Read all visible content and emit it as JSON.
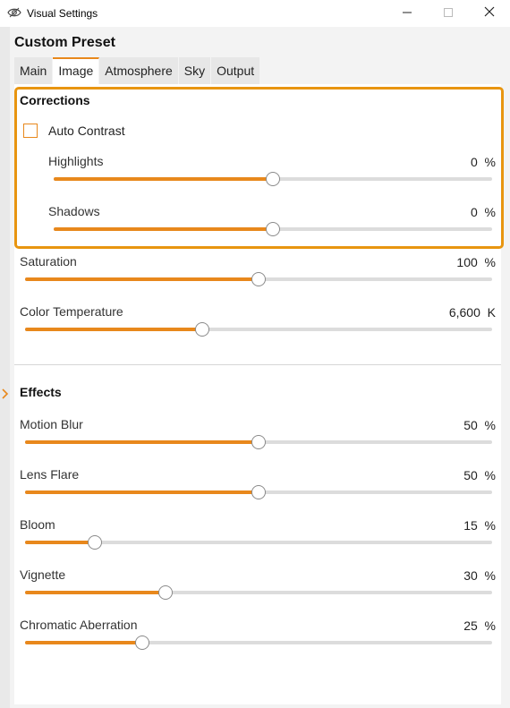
{
  "window": {
    "title": "Visual Settings",
    "icon": "eye-icon",
    "controls": [
      "minimize-icon",
      "maximize-icon",
      "close-icon"
    ]
  },
  "preset": {
    "title": "Custom Preset"
  },
  "tabs": [
    {
      "label": "Main",
      "active": false
    },
    {
      "label": "Image",
      "active": true
    },
    {
      "label": "Atmosphere",
      "active": false
    },
    {
      "label": "Sky",
      "active": false
    },
    {
      "label": "Output",
      "active": false
    }
  ],
  "colors": {
    "accent": "#e8881c",
    "highlight_border": "#e89510",
    "track": "#dcdcdc"
  },
  "corrections": {
    "title": "Corrections",
    "auto_contrast": {
      "label": "Auto Contrast",
      "checked": false
    },
    "sliders": [
      {
        "label": "Highlights",
        "value": "0",
        "unit": "%",
        "level": 0.5
      },
      {
        "label": "Shadows",
        "value": "0",
        "unit": "%",
        "level": 0.5
      }
    ]
  },
  "adjustments": {
    "sliders": [
      {
        "label": "Saturation",
        "value": "100",
        "unit": "%",
        "level": 0.5
      },
      {
        "label": "Color Temperature",
        "value": "6,600",
        "unit": "K",
        "level": 0.38
      }
    ]
  },
  "effects": {
    "title": "Effects",
    "sliders": [
      {
        "label": "Motion Blur",
        "value": "50",
        "unit": "%",
        "level": 0.5
      },
      {
        "label": "Lens Flare",
        "value": "50",
        "unit": "%",
        "level": 0.5
      },
      {
        "label": "Bloom",
        "value": "15",
        "unit": "%",
        "level": 0.15
      },
      {
        "label": "Vignette",
        "value": "30",
        "unit": "%",
        "level": 0.3
      },
      {
        "label": "Chromatic Aberration",
        "value": "25",
        "unit": "%",
        "level": 0.25
      }
    ]
  }
}
